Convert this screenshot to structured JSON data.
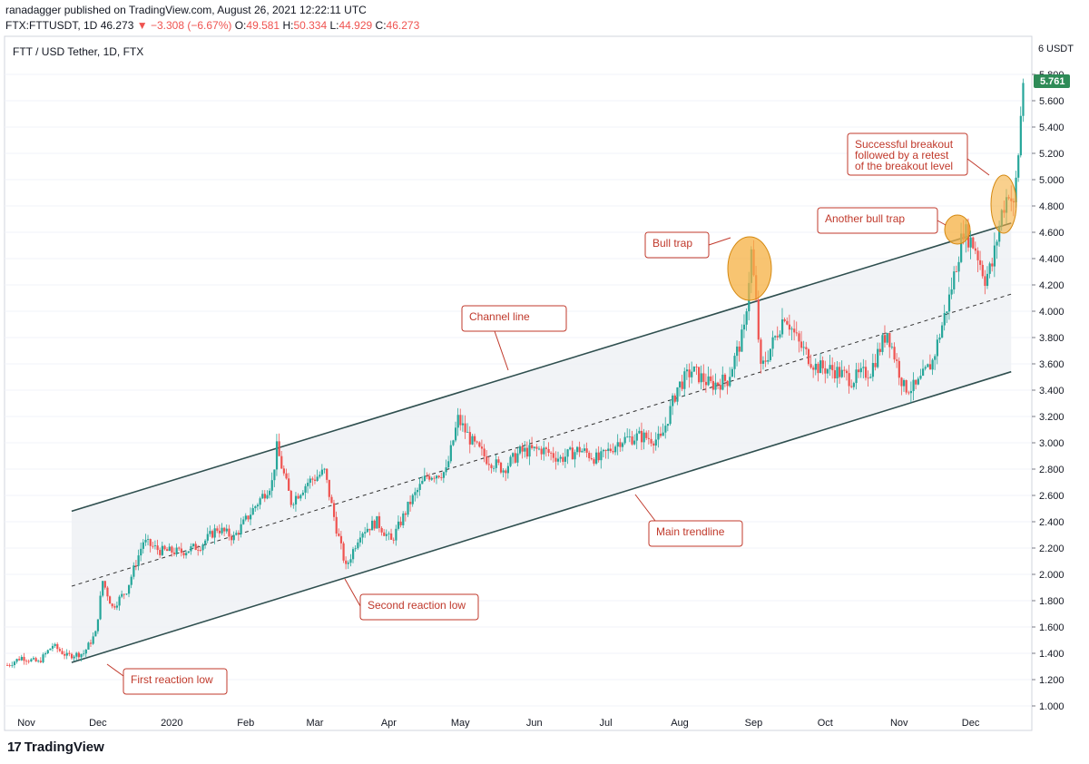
{
  "header": {
    "published_line": "ranadagger published on TradingView.com, August 26, 2021 12:22:11 UTC",
    "symbol": "FTX:FTTUSDT, 1D",
    "price": "46.273",
    "change_arrow": "▼",
    "change": "−3.308 (−6.67%)",
    "o_label": "O:",
    "o_value": "49.581",
    "h_label": "H:",
    "h_value": "50.334",
    "l_label": "L:",
    "l_value": "44.929",
    "c_label": "C:",
    "c_value": "46.273"
  },
  "colors": {
    "up": "#26a69a",
    "down": "#ef5350",
    "channel_line": "#2f4f4f",
    "annotation_border": "#c0392b",
    "ellipse_fill": "#f5b041",
    "price_tag_bg": "#2e8b57"
  },
  "footer": {
    "brand": "TradingView",
    "logo_icon": "tradingview-logo-icon",
    "logo_glyph": "17"
  },
  "chart_data": {
    "type": "candlestick",
    "title": "FTT / USD Tether, 1D, FTX",
    "currency_label": "USDT",
    "scale_note": "6",
    "last_price_label": "5.761",
    "ylim": [
      1.0,
      6.0
    ],
    "y_ticks": [
      "1.000",
      "1.200",
      "1.400",
      "1.600",
      "1.800",
      "2.000",
      "2.200",
      "2.400",
      "2.600",
      "2.800",
      "3.000",
      "3.200",
      "3.400",
      "3.600",
      "3.800",
      "4.000",
      "4.200",
      "4.400",
      "4.600",
      "4.800",
      "5.000",
      "5.200",
      "5.400",
      "5.600",
      "5.800"
    ],
    "x_ticks": [
      "Nov",
      "Dec",
      "2020",
      "Feb",
      "Mar",
      "Apr",
      "May",
      "Jun",
      "Jul",
      "Aug",
      "Sep",
      "Oct",
      "Nov",
      "Dec"
    ],
    "x_range": [
      "2019-10-24",
      "2020-12-24"
    ],
    "price_path": [
      [
        "2019-10-24",
        1.31
      ],
      [
        "2019-10-30",
        1.37
      ],
      [
        "2019-11-06",
        1.33
      ],
      [
        "2019-11-12",
        1.46
      ],
      [
        "2019-11-18",
        1.38
      ],
      [
        "2019-11-25",
        1.4
      ],
      [
        "2019-11-30",
        1.55
      ],
      [
        "2019-12-03",
        1.95
      ],
      [
        "2019-12-07",
        1.75
      ],
      [
        "2019-12-13",
        1.88
      ],
      [
        "2019-12-20",
        2.25
      ],
      [
        "2019-12-27",
        2.18
      ],
      [
        "2020-01-05",
        2.17
      ],
      [
        "2020-01-13",
        2.22
      ],
      [
        "2020-01-20",
        2.35
      ],
      [
        "2020-01-27",
        2.28
      ],
      [
        "2020-02-05",
        2.52
      ],
      [
        "2020-02-12",
        2.7
      ],
      [
        "2020-02-14",
        2.96
      ],
      [
        "2020-02-20",
        2.55
      ],
      [
        "2020-02-27",
        2.7
      ],
      [
        "2020-03-05",
        2.78
      ],
      [
        "2020-03-10",
        2.35
      ],
      [
        "2020-03-14",
        2.05
      ],
      [
        "2020-03-20",
        2.32
      ],
      [
        "2020-03-27",
        2.4
      ],
      [
        "2020-04-02",
        2.25
      ],
      [
        "2020-04-10",
        2.55
      ],
      [
        "2020-04-17",
        2.75
      ],
      [
        "2020-04-25",
        2.78
      ],
      [
        "2020-04-30",
        3.18
      ],
      [
        "2020-05-06",
        3.0
      ],
      [
        "2020-05-12",
        2.88
      ],
      [
        "2020-05-19",
        2.8
      ],
      [
        "2020-05-26",
        2.93
      ],
      [
        "2020-06-04",
        2.95
      ],
      [
        "2020-06-12",
        2.88
      ],
      [
        "2020-06-20",
        2.95
      ],
      [
        "2020-06-28",
        2.87
      ],
      [
        "2020-07-07",
        3.02
      ],
      [
        "2020-07-15",
        3.05
      ],
      [
        "2020-07-24",
        3.02
      ],
      [
        "2020-07-31",
        3.42
      ],
      [
        "2020-08-06",
        3.55
      ],
      [
        "2020-08-14",
        3.44
      ],
      [
        "2020-08-21",
        3.48
      ],
      [
        "2020-08-28",
        3.85
      ],
      [
        "2020-08-31",
        4.45
      ],
      [
        "2020-09-02",
        4.05
      ],
      [
        "2020-09-04",
        3.55
      ],
      [
        "2020-09-10",
        3.8
      ],
      [
        "2020-09-14",
        3.98
      ],
      [
        "2020-09-20",
        3.75
      ],
      [
        "2020-09-27",
        3.58
      ],
      [
        "2020-10-05",
        3.55
      ],
      [
        "2020-10-12",
        3.48
      ],
      [
        "2020-10-20",
        3.55
      ],
      [
        "2020-10-27",
        3.85
      ],
      [
        "2020-11-03",
        3.42
      ],
      [
        "2020-11-08",
        3.42
      ],
      [
        "2020-11-15",
        3.62
      ],
      [
        "2020-11-22",
        4.1
      ],
      [
        "2020-11-28",
        4.62
      ],
      [
        "2020-12-03",
        4.48
      ],
      [
        "2020-12-07",
        4.25
      ],
      [
        "2020-12-10",
        4.35
      ],
      [
        "2020-12-14",
        4.75
      ],
      [
        "2020-12-17",
        4.92
      ],
      [
        "2020-12-19",
        4.78
      ],
      [
        "2020-12-21",
        5.2
      ],
      [
        "2020-12-23",
        5.76
      ]
    ],
    "channel": {
      "upper": [
        [
          "2019-11-20",
          2.48
        ],
        [
          "2020-12-18",
          4.67
        ]
      ],
      "lower": [
        [
          "2019-11-20",
          1.33
        ],
        [
          "2020-12-18",
          3.54
        ]
      ],
      "mid": [
        [
          "2019-11-20",
          1.91
        ],
        [
          "2020-12-18",
          4.13
        ]
      ]
    },
    "annotations": [
      {
        "name": "first-reaction-low",
        "text": [
          "First reaction low"
        ]
      },
      {
        "name": "second-reaction-low",
        "text": [
          "Second reaction low"
        ]
      },
      {
        "name": "channel-line",
        "text": [
          "Channel line"
        ]
      },
      {
        "name": "main-trendline",
        "text": [
          "Main trendline"
        ]
      },
      {
        "name": "bull-trap",
        "text": [
          "Bull trap"
        ]
      },
      {
        "name": "another-bull-trap",
        "text": [
          "Another bull trap"
        ]
      },
      {
        "name": "successful-breakout",
        "text": [
          "Successful breakout",
          "followed by a retest",
          "of the breakout level"
        ]
      }
    ]
  }
}
